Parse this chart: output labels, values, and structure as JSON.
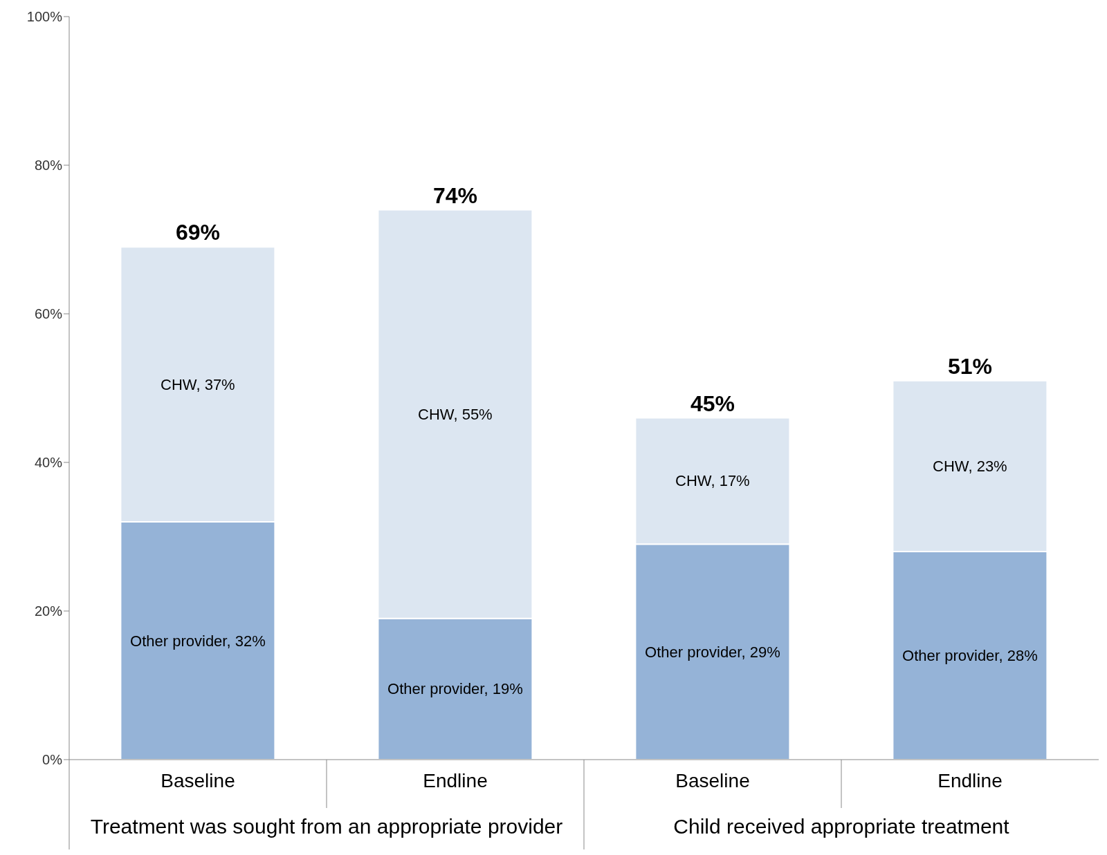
{
  "chart_data": {
    "type": "bar",
    "stacked": true,
    "categories": [
      "Baseline",
      "Endline",
      "Baseline",
      "Endline"
    ],
    "series": [
      {
        "color": "#95b3d7",
        "values": [
          32,
          19,
          29,
          28
        ],
        "value_labels": [
          "Other provider, 32%",
          "Other provider, 19%",
          "Other provider, 29%",
          "Other provider, 28%"
        ]
      },
      {
        "color": "#dce6f1",
        "values": [
          37,
          55,
          17,
          23
        ],
        "value_labels": [
          "CHW, 37%",
          "CHW, 55%",
          "CHW, 17%",
          "CHW, 23%"
        ]
      }
    ],
    "totals": [
      "69%",
      "74%",
      "45%",
      "51%"
    ],
    "ylim": [
      0,
      100
    ],
    "yticks": [
      {
        "value": 0,
        "label": "0%"
      },
      {
        "value": 20,
        "label": "20%"
      },
      {
        "value": 40,
        "label": "40%"
      },
      {
        "value": 60,
        "label": "60%"
      },
      {
        "value": 80,
        "label": "80%"
      },
      {
        "value": 100,
        "label": "100%"
      }
    ],
    "annotations": [
      "Treatment was sought from an appropriate provider",
      "Child received appropriate treatment"
    ]
  }
}
